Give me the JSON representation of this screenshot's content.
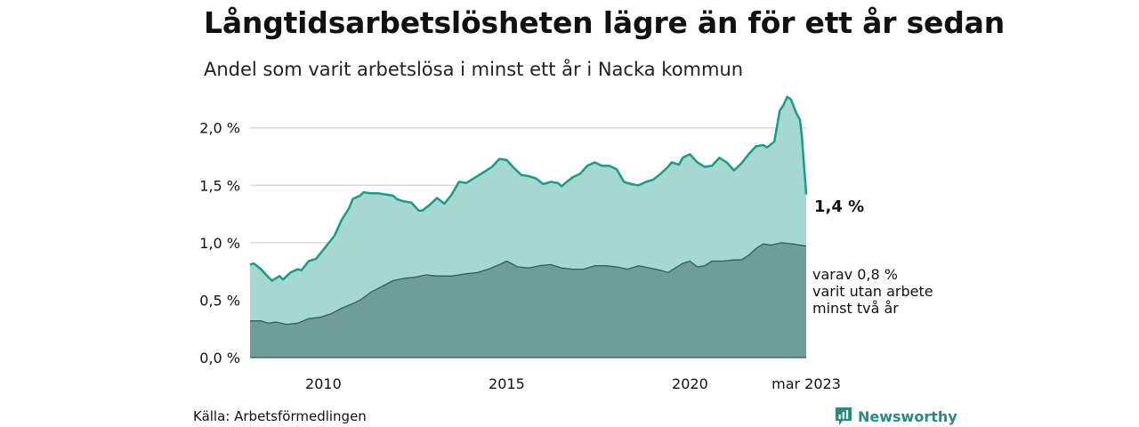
{
  "header": {
    "title": "Långtidsarbetslösheten lägre än för ett år sedan",
    "subtitle": "Andel som varit arbetslösa i minst ett år i Nacka kommun"
  },
  "footer": {
    "source": "Källa: Arbetsförmedlingen",
    "brand": "Newsworthy"
  },
  "colors": {
    "line_total": "#1a9a88",
    "fill_total": "#a4d8d1",
    "fill_long": "#6f9e98",
    "line_long": "#3a5a56",
    "grid": "#d9d9d9",
    "brand": "#2a8a80"
  },
  "chart_data": {
    "type": "area",
    "y_tick_labels": [
      "0,0 %",
      "0,5 %",
      "1,0 %",
      "1,5 %",
      "2,0 %"
    ],
    "y_ticks": [
      0,
      0.5,
      1.0,
      1.5,
      2.0
    ],
    "ylim": [
      0,
      2.3
    ],
    "x_tick_labels": [
      "2010",
      "2015",
      "2020",
      "mar 2023"
    ],
    "x_ticks": [
      2010.0,
      2015.0,
      2020.0,
      2023.17
    ],
    "xlim": [
      2008.0,
      2023.17
    ],
    "grid": true,
    "annotations": {
      "total_label": "1,4 %",
      "long_label_lines": [
        "varav 0,8 %",
        "varit utan arbete",
        "minst två år"
      ]
    },
    "series": [
      {
        "points": [
          [
            2008.0,
            0.81
          ],
          [
            2008.1,
            0.82
          ],
          [
            2008.3,
            0.77
          ],
          [
            2008.5,
            0.7
          ],
          [
            2008.6,
            0.67
          ],
          [
            2008.8,
            0.71
          ],
          [
            2008.9,
            0.68
          ],
          [
            2009.1,
            0.74
          ],
          [
            2009.3,
            0.77
          ],
          [
            2009.4,
            0.76
          ],
          [
            2009.6,
            0.84
          ],
          [
            2009.8,
            0.86
          ],
          [
            2009.9,
            0.9
          ],
          [
            2010.1,
            0.98
          ],
          [
            2010.3,
            1.06
          ],
          [
            2010.5,
            1.2
          ],
          [
            2010.7,
            1.3
          ],
          [
            2010.8,
            1.38
          ],
          [
            2011.0,
            1.41
          ],
          [
            2011.1,
            1.44
          ],
          [
            2011.3,
            1.43
          ],
          [
            2011.5,
            1.43
          ],
          [
            2011.7,
            1.42
          ],
          [
            2011.9,
            1.41
          ],
          [
            2012.0,
            1.38
          ],
          [
            2012.2,
            1.36
          ],
          [
            2012.4,
            1.35
          ],
          [
            2012.6,
            1.28
          ],
          [
            2012.7,
            1.28
          ],
          [
            2012.9,
            1.33
          ],
          [
            2013.1,
            1.39
          ],
          [
            2013.3,
            1.34
          ],
          [
            2013.5,
            1.42
          ],
          [
            2013.7,
            1.53
          ],
          [
            2013.9,
            1.52
          ],
          [
            2014.1,
            1.56
          ],
          [
            2014.4,
            1.62
          ],
          [
            2014.6,
            1.66
          ],
          [
            2014.8,
            1.73
          ],
          [
            2015.0,
            1.72
          ],
          [
            2015.2,
            1.65
          ],
          [
            2015.4,
            1.59
          ],
          [
            2015.6,
            1.58
          ],
          [
            2015.8,
            1.56
          ],
          [
            2016.0,
            1.51
          ],
          [
            2016.2,
            1.53
          ],
          [
            2016.4,
            1.52
          ],
          [
            2016.5,
            1.49
          ],
          [
            2016.6,
            1.52
          ],
          [
            2016.8,
            1.57
          ],
          [
            2017.0,
            1.6
          ],
          [
            2017.2,
            1.67
          ],
          [
            2017.4,
            1.7
          ],
          [
            2017.6,
            1.67
          ],
          [
            2017.8,
            1.67
          ],
          [
            2018.0,
            1.64
          ],
          [
            2018.2,
            1.53
          ],
          [
            2018.4,
            1.51
          ],
          [
            2018.6,
            1.5
          ],
          [
            2018.8,
            1.53
          ],
          [
            2019.0,
            1.55
          ],
          [
            2019.2,
            1.6
          ],
          [
            2019.4,
            1.66
          ],
          [
            2019.5,
            1.7
          ],
          [
            2019.7,
            1.68
          ],
          [
            2019.8,
            1.74
          ],
          [
            2020.0,
            1.77
          ],
          [
            2020.2,
            1.7
          ],
          [
            2020.4,
            1.66
          ],
          [
            2020.6,
            1.67
          ],
          [
            2020.8,
            1.74
          ],
          [
            2021.0,
            1.7
          ],
          [
            2021.2,
            1.63
          ],
          [
            2021.4,
            1.69
          ],
          [
            2021.6,
            1.77
          ],
          [
            2021.8,
            1.84
          ],
          [
            2022.0,
            1.85
          ],
          [
            2022.1,
            1.83
          ],
          [
            2022.3,
            1.88
          ],
          [
            2022.45,
            2.15
          ],
          [
            2022.55,
            2.2
          ],
          [
            2022.65,
            2.27
          ],
          [
            2022.75,
            2.25
          ],
          [
            2022.9,
            2.13
          ],
          [
            2023.0,
            2.07
          ]
        ]
      },
      {
        "points": [
          [
            2008.0,
            0.32
          ],
          [
            2008.3,
            0.32
          ],
          [
            2008.5,
            0.3
          ],
          [
            2008.7,
            0.31
          ],
          [
            2009.0,
            0.29
          ],
          [
            2009.3,
            0.3
          ],
          [
            2009.6,
            0.34
          ],
          [
            2009.9,
            0.35
          ],
          [
            2010.2,
            0.38
          ],
          [
            2010.5,
            0.43
          ],
          [
            2010.8,
            0.47
          ],
          [
            2011.0,
            0.5
          ],
          [
            2011.3,
            0.57
          ],
          [
            2011.6,
            0.62
          ],
          [
            2011.9,
            0.67
          ],
          [
            2012.2,
            0.69
          ],
          [
            2012.5,
            0.7
          ],
          [
            2012.8,
            0.72
          ],
          [
            2013.1,
            0.71
          ],
          [
            2013.5,
            0.71
          ],
          [
            2013.9,
            0.73
          ],
          [
            2014.2,
            0.74
          ],
          [
            2014.5,
            0.77
          ],
          [
            2014.8,
            0.81
          ],
          [
            2015.0,
            0.84
          ],
          [
            2015.3,
            0.79
          ],
          [
            2015.6,
            0.78
          ],
          [
            2015.9,
            0.8
          ],
          [
            2016.2,
            0.81
          ],
          [
            2016.5,
            0.78
          ],
          [
            2016.8,
            0.77
          ],
          [
            2017.1,
            0.77
          ],
          [
            2017.4,
            0.8
          ],
          [
            2017.7,
            0.8
          ],
          [
            2018.0,
            0.79
          ],
          [
            2018.3,
            0.77
          ],
          [
            2018.6,
            0.8
          ],
          [
            2018.9,
            0.78
          ],
          [
            2019.2,
            0.76
          ],
          [
            2019.4,
            0.74
          ],
          [
            2019.6,
            0.78
          ],
          [
            2019.8,
            0.82
          ],
          [
            2020.0,
            0.84
          ],
          [
            2020.2,
            0.79
          ],
          [
            2020.4,
            0.8
          ],
          [
            2020.6,
            0.84
          ],
          [
            2020.9,
            0.84
          ],
          [
            2021.2,
            0.85
          ],
          [
            2021.4,
            0.85
          ],
          [
            2021.6,
            0.89
          ],
          [
            2021.8,
            0.95
          ],
          [
            2022.0,
            0.99
          ],
          [
            2022.2,
            0.98
          ],
          [
            2022.5,
            1.0
          ],
          [
            2022.8,
            0.99
          ],
          [
            2023.17,
            0.97
          ]
        ]
      }
    ]
  }
}
